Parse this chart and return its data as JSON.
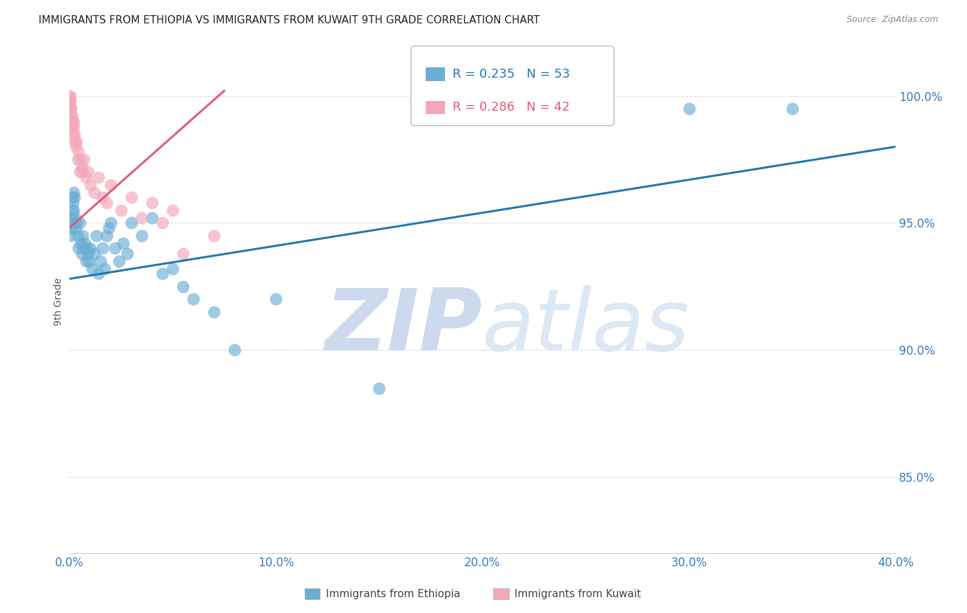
{
  "title": "IMMIGRANTS FROM ETHIOPIA VS IMMIGRANTS FROM KUWAIT 9TH GRADE CORRELATION CHART",
  "source": "Source: ZipAtlas.com",
  "ylabel": "9th Grade",
  "x_label_ethiopia": "Immigrants from Ethiopia",
  "x_label_kuwait": "Immigrants from Kuwait",
  "legend_blue_R": "R = 0.235",
  "legend_blue_N": "N = 53",
  "legend_pink_R": "R = 0.286",
  "legend_pink_N": "N = 42",
  "x_tick_labels": [
    "0.0%",
    "10.0%",
    "20.0%",
    "30.0%",
    "40.0%"
  ],
  "x_tick_values": [
    0.0,
    10.0,
    20.0,
    30.0,
    40.0
  ],
  "y_tick_labels": [
    "85.0%",
    "90.0%",
    "95.0%",
    "100.0%"
  ],
  "y_tick_values": [
    85.0,
    90.0,
    95.0,
    100.0
  ],
  "xlim": [
    0.0,
    40.0
  ],
  "ylim": [
    82.0,
    101.8
  ],
  "blue_color": "#6aaed6",
  "pink_color": "#f4a7b9",
  "blue_line_color": "#2176ae",
  "pink_line_color": "#e05a7a",
  "watermark_zip_color": "#d0dff0",
  "watermark_atlas_color": "#c8d8ec",
  "background_color": "#ffffff",
  "title_fontsize": 11,
  "tick_label_color": "#3a7abf",
  "grid_color": "#cccccc",
  "ethiopia_x": [
    0.05,
    0.08,
    0.1,
    0.12,
    0.14,
    0.16,
    0.18,
    0.2,
    0.22,
    0.25,
    0.28,
    0.3,
    0.35,
    0.4,
    0.45,
    0.5,
    0.55,
    0.6,
    0.65,
    0.7,
    0.75,
    0.8,
    0.85,
    0.9,
    0.95,
    1.0,
    1.1,
    1.2,
    1.3,
    1.4,
    1.5,
    1.6,
    1.7,
    1.8,
    1.9,
    2.0,
    2.2,
    2.4,
    2.6,
    2.8,
    3.0,
    3.5,
    4.0,
    4.5,
    5.0,
    5.5,
    6.0,
    7.0,
    8.0,
    10.0,
    15.0,
    30.0,
    35.0
  ],
  "ethiopia_y": [
    94.5,
    95.0,
    95.2,
    94.8,
    95.5,
    96.0,
    95.8,
    96.2,
    95.5,
    96.0,
    95.2,
    94.8,
    95.0,
    94.5,
    94.0,
    95.0,
    94.2,
    93.8,
    94.5,
    94.0,
    94.2,
    93.5,
    94.0,
    93.8,
    93.5,
    94.0,
    93.2,
    93.8,
    94.5,
    93.0,
    93.5,
    94.0,
    93.2,
    94.5,
    94.8,
    95.0,
    94.0,
    93.5,
    94.2,
    93.8,
    95.0,
    94.5,
    95.2,
    93.0,
    93.2,
    92.5,
    92.0,
    91.5,
    90.0,
    92.0,
    88.5,
    99.5,
    99.5
  ],
  "kuwait_x": [
    0.02,
    0.03,
    0.04,
    0.05,
    0.06,
    0.07,
    0.08,
    0.09,
    0.1,
    0.12,
    0.14,
    0.16,
    0.18,
    0.2,
    0.22,
    0.25,
    0.28,
    0.3,
    0.35,
    0.4,
    0.45,
    0.5,
    0.55,
    0.6,
    0.65,
    0.7,
    0.8,
    0.9,
    1.0,
    1.2,
    1.4,
    1.6,
    1.8,
    2.0,
    2.5,
    3.0,
    3.5,
    4.0,
    4.5,
    5.0,
    5.5,
    7.0
  ],
  "kuwait_y": [
    100.0,
    100.0,
    99.8,
    99.5,
    99.8,
    99.5,
    99.2,
    99.5,
    99.0,
    98.8,
    99.0,
    99.2,
    98.5,
    99.0,
    98.8,
    98.5,
    98.2,
    98.0,
    98.2,
    97.5,
    97.8,
    97.0,
    97.5,
    97.2,
    97.0,
    97.5,
    96.8,
    97.0,
    96.5,
    96.2,
    96.8,
    96.0,
    95.8,
    96.5,
    95.5,
    96.0,
    95.2,
    95.8,
    95.0,
    95.5,
    93.8,
    94.5
  ],
  "blue_trendline_x": [
    0.0,
    40.0
  ],
  "blue_trendline_y": [
    92.8,
    98.0
  ],
  "pink_trendline_x": [
    0.0,
    7.5
  ],
  "pink_trendline_y": [
    94.8,
    100.2
  ]
}
